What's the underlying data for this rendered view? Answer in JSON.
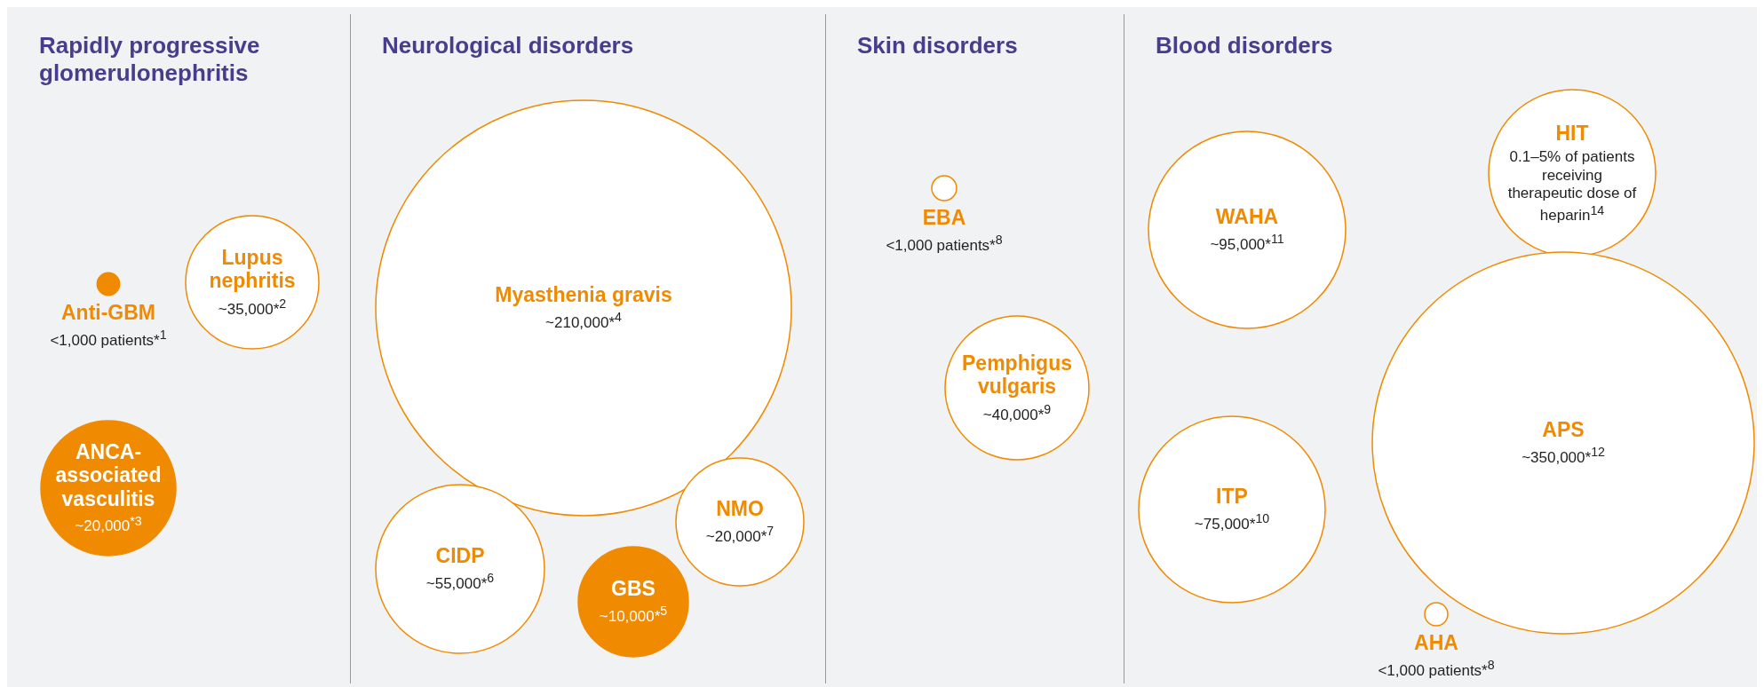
{
  "chart_data": [
    {
      "type": "other",
      "title": "Rapidly progressive glomerulonephritis",
      "color": "#f08a00",
      "categories": [
        "Anti-GBM",
        "Lupus nephritis",
        "ANCA-associated vasculitis"
      ],
      "values": [
        null,
        35000,
        20000
      ],
      "value_labels": [
        "<1,000 patients*$^{1}$",
        "~35,000*$^{2}$",
        "~20,000$^{*3}$"
      ],
      "colors": [
        "#f08a00",
        "#ffffff",
        "#f08a00"
      ]
    },
    {
      "type": "other",
      "title": "Neurological disorders",
      "color": "#f08a00",
      "categories": [
        "Myasthenia gravis",
        "CIDP",
        "GBS",
        "NMO"
      ],
      "values": [
        210000,
        55000,
        10000,
        20000
      ],
      "value_labels": [
        "~210,000*$^{4}$",
        "~55,000*$^{6}$",
        "~10,000*$^{5}$",
        "~20,000*$^{7}$"
      ],
      "colors": [
        "#ffffff",
        "#ffffff",
        "#f08a00",
        "#ffffff"
      ]
    },
    {
      "type": "other",
      "title": "Skin disorders",
      "color": "#f08a00",
      "categories": [
        "EBA",
        "Pemphigus vulgaris"
      ],
      "values": [
        null,
        40000
      ],
      "value_labels": [
        "<1,000 patients*$^{8}$",
        "~40,000*$^{9}$"
      ],
      "colors": [
        "#ffffff",
        "#ffffff"
      ]
    },
    {
      "type": "other",
      "title": "Blood disorders",
      "color": "#f08a00",
      "categories": [
        "WAHA",
        "HIT",
        "APS",
        "ITP",
        "AHA"
      ],
      "values": [
        95000,
        null,
        350000,
        75000,
        null
      ],
      "value_labels": [
        "~95,000*$^{11}$",
        "0.1–5% of patients receiving therapeutic dose of heparin$^{14}$",
        "~350,000*$^{12}$",
        "~75,000*$^{10}$",
        "<1,000 patients*$^{8}$"
      ],
      "colors": [
        "#ffffff",
        "#ffffff",
        "#ffffff",
        "#ffffff",
        "#ffffff"
      ]
    }
  ]
}
